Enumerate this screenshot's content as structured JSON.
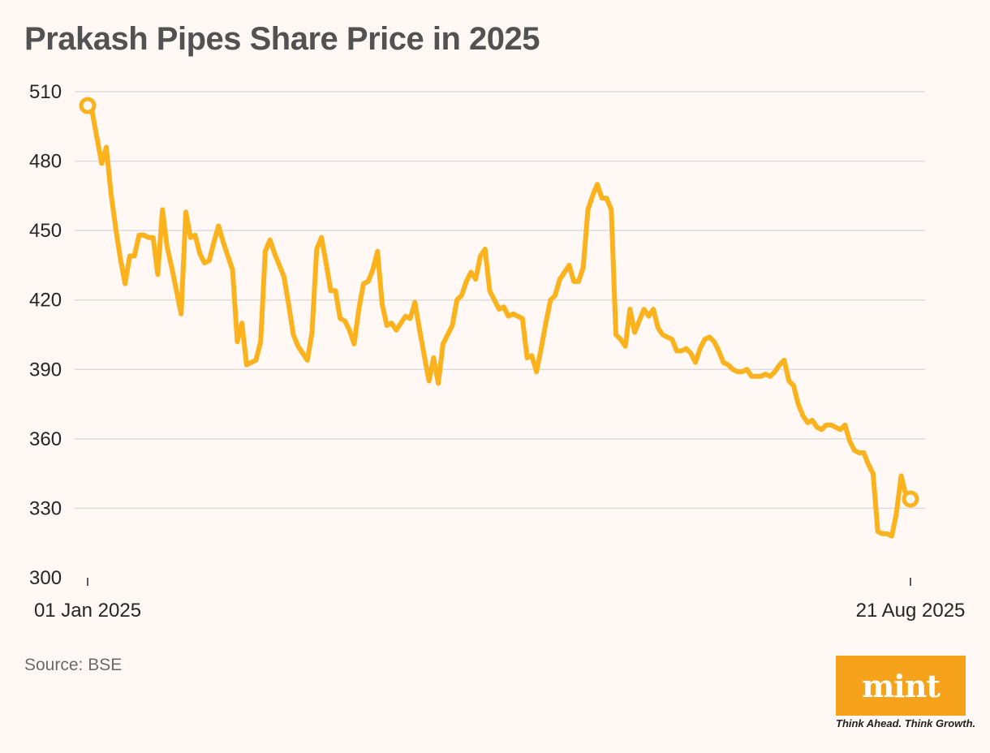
{
  "title": "Prakash Pipes Share Price in 2025",
  "source": "Source: BSE",
  "brand": {
    "logo_text": "mint",
    "tagline": "Think Ahead. Think Growth.",
    "color": "#f7a21b"
  },
  "chart_data": {
    "type": "line",
    "title": "Prakash Pipes Share Price in 2025",
    "xlabel": "",
    "ylabel": "",
    "ylim": [
      300,
      510
    ],
    "yticks": [
      300,
      330,
      360,
      390,
      420,
      450,
      480,
      510
    ],
    "x_tick_labels": [
      "01 Jan 2025",
      "21 Aug 2025"
    ],
    "x_range": [
      "2025-01-01",
      "2025-08-21"
    ],
    "grid": true,
    "line_color": "#fbb21c",
    "series": [
      {
        "values": [
          504,
          501,
          490,
          479,
          486,
          466,
          451,
          438,
          427,
          439,
          439,
          448,
          448,
          447,
          447,
          431,
          459,
          443,
          434,
          424,
          414,
          458,
          447,
          448,
          440,
          436,
          437,
          445,
          452,
          445,
          439,
          433,
          402,
          410,
          392,
          393,
          394,
          402,
          441,
          446,
          440,
          435,
          430,
          418,
          405,
          400,
          397,
          394,
          406,
          442,
          447,
          436,
          424,
          424,
          412,
          411,
          407,
          401,
          416,
          427,
          428,
          433,
          441,
          418,
          409,
          410,
          407,
          410,
          413,
          412,
          419,
          407,
          396,
          385,
          395,
          384,
          401,
          405,
          409,
          420,
          422,
          428,
          432,
          429,
          439,
          442,
          424,
          420,
          416,
          417,
          413,
          414,
          413,
          412,
          395,
          396,
          389,
          399,
          410,
          420,
          422,
          429,
          432,
          435,
          428,
          428,
          434,
          459,
          465,
          470,
          464,
          464,
          459,
          405,
          403,
          400,
          416,
          406,
          411,
          416,
          413,
          416,
          408,
          405,
          404,
          403,
          398,
          398,
          399,
          397,
          393,
          399,
          403,
          404,
          402,
          398,
          393,
          392,
          390,
          389,
          389,
          390,
          387,
          387,
          387,
          388,
          387,
          389,
          392,
          394,
          385,
          383,
          375,
          370,
          367,
          368,
          365,
          364,
          366,
          366,
          365,
          364,
          366,
          359,
          355,
          354,
          354,
          349,
          345,
          320,
          319,
          319,
          318,
          328,
          344,
          336,
          334
        ]
      }
    ]
  }
}
